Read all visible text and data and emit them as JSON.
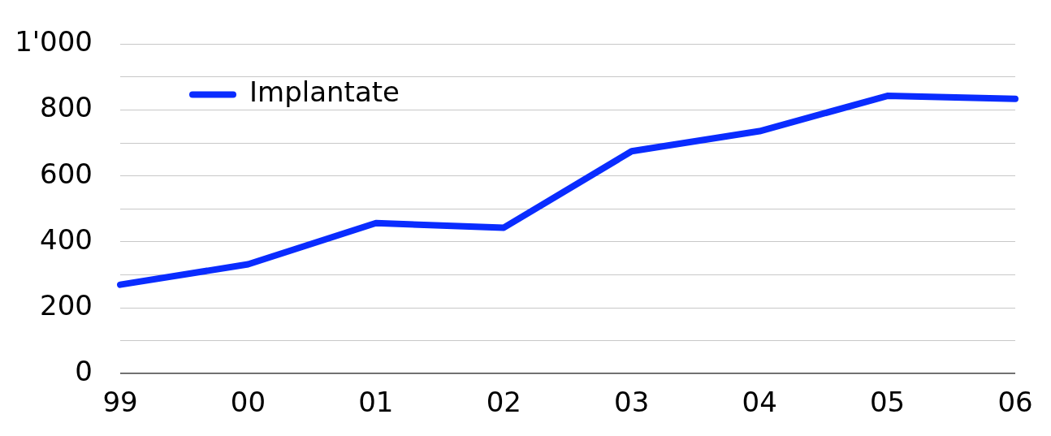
{
  "chart_data": {
    "type": "line",
    "categories": [
      "99",
      "00",
      "01",
      "02",
      "03",
      "04",
      "05",
      "06"
    ],
    "series": [
      {
        "name": "Implantate",
        "color": "#0a2cff",
        "values": [
          270,
          332,
          457,
          443,
          675,
          736,
          843,
          834
        ]
      }
    ],
    "ylim": [
      0,
      1000
    ],
    "yticks": [
      0,
      {
        "value": 100,
        "label": null
      },
      200,
      {
        "value": 300,
        "label": null
      },
      400,
      {
        "value": 500,
        "label": null
      },
      600,
      {
        "value": 700,
        "label": null
      },
      800,
      {
        "value": 900,
        "label": null
      },
      {
        "value": 1000,
        "label": "1'000"
      }
    ],
    "grid": "y",
    "legend": "top left",
    "marker": "none",
    "line_style": "solid"
  }
}
